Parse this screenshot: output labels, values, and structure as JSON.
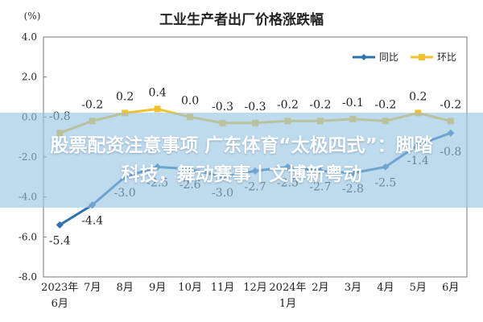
{
  "chart_data": {
    "type": "line",
    "title": "工业生产者出厂价格涨跌幅",
    "ylabel": "(%)",
    "ylim": [
      -8.0,
      4.0
    ],
    "yticks": [
      "4.0",
      "2.0",
      "0.0",
      "-2.0",
      "-4.0",
      "-6.0",
      "-8.0"
    ],
    "categories": [
      [
        "2023年",
        "6月"
      ],
      [
        "7月"
      ],
      [
        "8月"
      ],
      [
        "9月"
      ],
      [
        "10月"
      ],
      [
        "11月"
      ],
      [
        "12月"
      ],
      [
        "2024年",
        "1月"
      ],
      [
        "2月"
      ],
      [
        "3月"
      ],
      [
        "4月"
      ],
      [
        "5月"
      ],
      [
        "6月"
      ]
    ],
    "series": [
      {
        "name": "同比",
        "color": "#2e72b5",
        "values": [
          -5.4,
          -4.4,
          -3.0,
          -2.5,
          -2.6,
          -3.0,
          -2.7,
          -2.5,
          -2.7,
          -2.8,
          -2.5,
          -1.4,
          -0.8
        ],
        "labels": [
          "-5.4",
          "-4.4",
          "-3.0",
          "-2.5",
          "-2.6",
          "-3.0",
          "-2.7",
          "-2.5",
          "-2.7",
          "-2.8",
          "-2.5",
          "-1.4",
          "-0.8"
        ]
      },
      {
        "name": "环比",
        "color": "#f2c12e",
        "values": [
          -0.8,
          -0.2,
          0.2,
          0.4,
          0.0,
          -0.3,
          -0.3,
          -0.2,
          -0.2,
          -0.1,
          -0.2,
          0.2,
          -0.2
        ],
        "labels": [
          "-0.8",
          "-0.2",
          "0.2",
          "0.4",
          "0.0",
          "-0.3",
          "-0.3",
          "-0.2",
          "-0.2",
          "-0.1",
          "-0.2",
          "0.2",
          "-0.2"
        ]
      }
    ],
    "legend_position": "top-right",
    "grid": false
  },
  "overlay": {
    "line1": "股票配资注意事项 广东体育“太极四式”：脚踏",
    "line2": "科技，舞动赛事丨文博新粤动"
  }
}
